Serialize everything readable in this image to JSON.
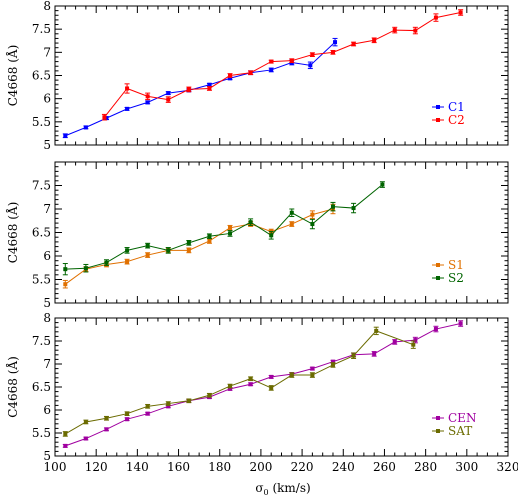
{
  "chart_data": {
    "type": "line",
    "xlabel_symbol": "σ",
    "xlabel_subscript": "0",
    "xlabel_rest": " (km/s)",
    "xlim": [
      100,
      320
    ],
    "xticks": [
      100,
      120,
      140,
      160,
      180,
      200,
      220,
      240,
      260,
      280,
      300,
      320
    ],
    "panels": [
      {
        "ylabel": "C4668 (Å)",
        "ylim": [
          5,
          8
        ],
        "yticks": [
          5,
          5.5,
          6,
          6.5,
          7,
          7.5,
          8
        ],
        "ytick_labels": [
          "5",
          "5.5",
          "6",
          "6.5",
          "7",
          "7.5",
          "8"
        ],
        "legend_placement": "bottom-right",
        "series": [
          {
            "name": "C1",
            "color": "#0000ff",
            "x": [
              105,
              115,
              125,
              135,
              145,
              155,
              165,
              175,
              185,
              195,
              205,
              215,
              224,
              236
            ],
            "y": [
              5.2,
              5.38,
              5.58,
              5.78,
              5.92,
              6.12,
              6.18,
              6.3,
              6.44,
              6.56,
              6.62,
              6.78,
              6.72,
              7.22
            ],
            "err": [
              0.04,
              0.03,
              0.03,
              0.03,
              0.03,
              0.03,
              0.03,
              0.03,
              0.03,
              0.04,
              0.04,
              0.05,
              0.07,
              0.08
            ]
          },
          {
            "name": "C2",
            "color": "#ff0000",
            "x": [
              124,
              135,
              145,
              155,
              165,
              175,
              185,
              195,
              205,
              215,
              225,
              235,
              245,
              255,
              265,
              275,
              285,
              297
            ],
            "y": [
              5.6,
              6.22,
              6.05,
              5.98,
              6.2,
              6.22,
              6.5,
              6.56,
              6.8,
              6.82,
              6.95,
              7.0,
              7.18,
              7.26,
              7.48,
              7.47,
              7.75,
              7.86
            ],
            "err": [
              0.06,
              0.1,
              0.07,
              0.06,
              0.05,
              0.04,
              0.04,
              0.04,
              0.03,
              0.04,
              0.04,
              0.04,
              0.04,
              0.05,
              0.06,
              0.07,
              0.08,
              0.06
            ]
          }
        ]
      },
      {
        "ylabel": "C4668 (Å)",
        "ylim": [
          5,
          8
        ],
        "yticks": [
          5,
          5.5,
          6,
          6.5,
          7,
          7.5
        ],
        "ytick_labels": [
          "5",
          "5.5",
          "6",
          "6.5",
          "7",
          "7.5"
        ],
        "legend_placement": "bottom-right",
        "series": [
          {
            "name": "S1",
            "color": "#e07000",
            "x": [
              105,
              115,
              125,
              135,
              145,
              155,
              165,
              175,
              185,
              195,
              205,
              215,
              225,
              235
            ],
            "y": [
              5.4,
              5.72,
              5.82,
              5.88,
              6.02,
              6.12,
              6.12,
              6.32,
              6.6,
              6.68,
              6.52,
              6.68,
              6.88,
              7.0
            ],
            "err": [
              0.08,
              0.05,
              0.05,
              0.05,
              0.05,
              0.05,
              0.05,
              0.05,
              0.05,
              0.05,
              0.05,
              0.05,
              0.08,
              0.1
            ]
          },
          {
            "name": "S2",
            "color": "#006400",
            "x": [
              105,
              115,
              125,
              135,
              145,
              155,
              165,
              175,
              185,
              195,
              205,
              215,
              225,
              235,
              245,
              259
            ],
            "y": [
              5.72,
              5.74,
              5.86,
              6.12,
              6.22,
              6.12,
              6.28,
              6.42,
              6.48,
              6.72,
              6.44,
              6.92,
              6.68,
              7.05,
              7.02,
              7.52
            ],
            "err": [
              0.12,
              0.08,
              0.06,
              0.06,
              0.05,
              0.06,
              0.05,
              0.05,
              0.06,
              0.07,
              0.08,
              0.08,
              0.1,
              0.09,
              0.1,
              0.06
            ]
          }
        ]
      },
      {
        "ylabel": "C4668 (Å)",
        "ylim": [
          5,
          8
        ],
        "yticks": [
          5,
          5.5,
          6,
          6.5,
          7,
          7.5,
          8
        ],
        "ytick_labels": [
          "5",
          "5.5",
          "6",
          "6.5",
          "7",
          "7.5",
          "8"
        ],
        "legend_placement": "bottom-right",
        "series": [
          {
            "name": "CEN",
            "color": "#a000a0",
            "x": [
              105,
              115,
              125,
              135,
              145,
              155,
              165,
              175,
              185,
              195,
              205,
              215,
              225,
              235,
              245,
              255,
              265,
              275,
              285,
              297
            ],
            "y": [
              5.22,
              5.38,
              5.58,
              5.8,
              5.92,
              6.08,
              6.2,
              6.28,
              6.46,
              6.56,
              6.72,
              6.78,
              6.9,
              7.05,
              7.2,
              7.22,
              7.48,
              7.52,
              7.76,
              7.88
            ],
            "err": [
              0.03,
              0.03,
              0.03,
              0.03,
              0.03,
              0.03,
              0.03,
              0.03,
              0.03,
              0.03,
              0.03,
              0.03,
              0.03,
              0.03,
              0.04,
              0.05,
              0.05,
              0.06,
              0.06,
              0.06
            ]
          },
          {
            "name": "SAT",
            "color": "#6b6b00",
            "x": [
              105,
              115,
              125,
              135,
              145,
              155,
              165,
              175,
              185,
              195,
              205,
              215,
              225,
              235,
              245,
              256,
              274
            ],
            "y": [
              5.48,
              5.74,
              5.82,
              5.92,
              6.08,
              6.14,
              6.2,
              6.32,
              6.52,
              6.68,
              6.48,
              6.76,
              6.76,
              6.98,
              7.18,
              7.72,
              7.42
            ],
            "err": [
              0.05,
              0.04,
              0.04,
              0.04,
              0.04,
              0.04,
              0.04,
              0.04,
              0.04,
              0.04,
              0.05,
              0.05,
              0.05,
              0.05,
              0.06,
              0.08,
              0.08
            ]
          }
        ]
      }
    ]
  }
}
